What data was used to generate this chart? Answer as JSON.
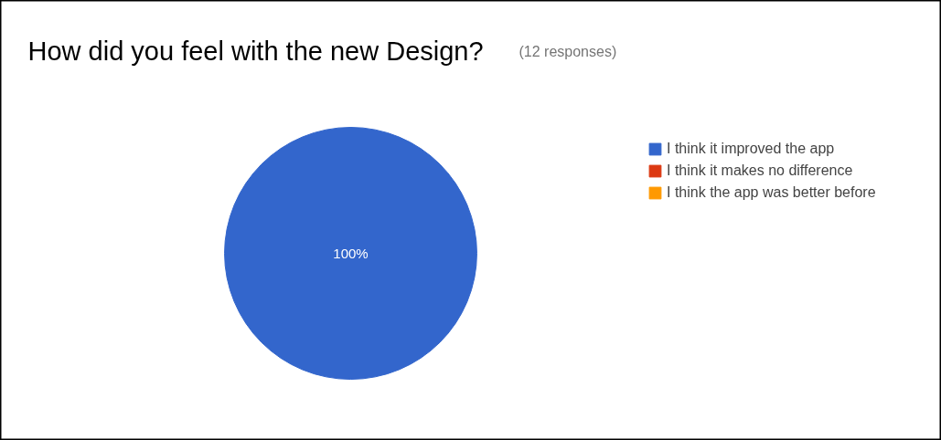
{
  "chart_data": {
    "type": "pie",
    "title": "How did you feel with the new Design?",
    "subtitle": "(12 responses)",
    "categories": [
      "I think it improved the app",
      "I think it makes no difference",
      "I think the app was better before"
    ],
    "values": [
      100,
      0,
      0
    ],
    "colors": [
      "#3366cc",
      "#dc3912",
      "#ff9900"
    ],
    "value_labels": [
      "100%",
      null,
      null
    ],
    "legend": "right"
  }
}
